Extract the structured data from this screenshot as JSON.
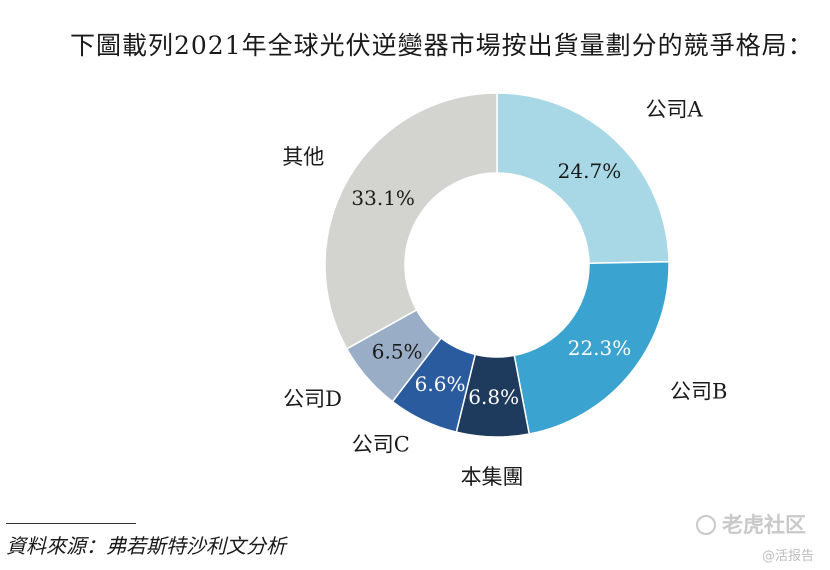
{
  "title": "下圖載列2021年全球光伏逆變器市場按出貨量劃分的競爭格局：",
  "chart_data": {
    "type": "pie",
    "donut": true,
    "slices": [
      {
        "label": "公司A",
        "value": 24.7,
        "value_label": "24.7%",
        "color": "#a8d8e6",
        "value_text_color": "#1a1a1a"
      },
      {
        "label": "公司B",
        "value": 22.3,
        "value_label": "22.3%",
        "color": "#3aa3d0",
        "value_text_color": "#ffffff"
      },
      {
        "label": "本集團",
        "value": 6.8,
        "value_label": "6.8%",
        "color": "#1e3a5c",
        "value_text_color": "#ffffff"
      },
      {
        "label": "公司C",
        "value": 6.6,
        "value_label": "6.6%",
        "color": "#2a5b9e",
        "value_text_color": "#ffffff"
      },
      {
        "label": "公司D",
        "value": 6.5,
        "value_label": "6.5%",
        "color": "#9aadc6",
        "value_text_color": "#1a1a1a"
      },
      {
        "label": "其他",
        "value": 33.1,
        "value_label": "33.1%",
        "color": "#d3d4d0",
        "value_text_color": "#1a1a1a"
      }
    ]
  },
  "source": "資料來源：弗若斯特沙利文分析",
  "watermark": {
    "brand": "老虎社区",
    "sub": "@活报告"
  }
}
